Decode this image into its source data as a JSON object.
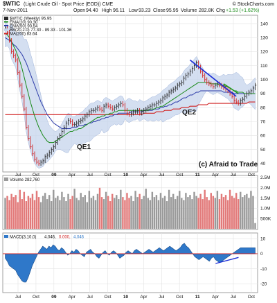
{
  "header": {
    "symbol": "$WTIC",
    "description": "(Light Crude Oil - Spot Price (EOD)) CME",
    "date": "7-Nov-2011",
    "open_label": "Open",
    "open": "94.40",
    "high_label": "High",
    "high": "96.11",
    "low_label": "Low",
    "low": "93.23",
    "close_label": "Close",
    "close": "95.95",
    "volume_label": "Volume",
    "volume": "282.8K",
    "chg_label": "Chg",
    "chg": "+1.53 (+1.62%)",
    "watermark": "© StockCharts.com"
  },
  "legend": {
    "price_row": "$WTIC (Weekly) 95.95",
    "ema20": "EMA(20) 90.30",
    "ema50": "EMA(50) 90.54",
    "bb": "BB(20,2.0) 77.30 - 89.33 - 101.36",
    "ma200": "MA(200) 83.64",
    "volume": "Volume 282,760",
    "macd_label": "MACD(3,10,0)",
    "macd_v1": "4.046,",
    "macd_v2": "0.000,",
    "macd_v3": "4.046"
  },
  "annotations": {
    "qe1": "QE1",
    "qe2": "QE2",
    "credit": "(c) Afraid to Trade"
  },
  "colors": {
    "up_bar": "#2a2a2a",
    "down_bar": "#d11f1f",
    "ema20": "#1a8a1a",
    "ema50": "#2b3aa8",
    "bb_fill": "#c6d4ec",
    "ma200": "#d12020",
    "vol_up": "#9a9a9a",
    "vol_down": "#e27a7a",
    "macd_fill": "#2f78c9",
    "trend_blue": "#1a2bd6",
    "trend_green": "#1a9a1a"
  },
  "chart_data": [
    {
      "type": "line",
      "panel": "price",
      "x_tick_labels": [
        "Jul",
        "Oct",
        "09",
        "Apr",
        "Jul",
        "Oct",
        "10",
        "Apr",
        "Jul",
        "Oct",
        "11",
        "Apr",
        "Jul",
        "Oct"
      ],
      "ylim": [
        35,
        145
      ],
      "y_ticks": [
        140,
        130,
        120,
        110,
        100,
        90,
        80,
        70,
        60,
        50,
        40
      ],
      "series": [
        {
          "name": "$WTIC (Weekly)",
          "values": [
            137,
            134,
            128,
            120,
            117,
            114,
            105,
            96,
            88,
            79,
            66,
            58,
            52,
            47,
            43,
            41,
            40,
            41,
            42,
            45,
            46,
            48,
            50,
            52,
            55,
            58,
            60,
            63,
            66,
            69,
            71,
            70,
            68,
            68,
            69,
            70,
            71,
            72,
            74,
            75,
            77,
            78,
            78,
            79,
            80,
            79,
            78,
            81,
            82,
            81,
            80,
            79,
            80,
            81,
            82,
            83,
            82,
            78,
            76,
            75,
            76,
            77,
            77,
            78,
            76,
            77,
            78,
            79,
            80,
            81,
            82,
            82,
            83,
            84,
            85,
            87,
            88,
            89,
            91,
            92,
            93,
            94,
            96,
            97,
            98,
            101,
            103,
            104,
            106,
            108,
            110,
            112,
            109,
            106,
            103,
            100,
            98,
            97,
            96,
            95,
            96,
            97,
            96,
            95,
            94,
            93,
            92,
            90,
            88,
            85,
            84,
            83,
            85,
            86,
            88,
            90,
            91,
            92,
            94,
            96
          ]
        },
        {
          "name": "EMA(20)",
          "values": [
            133,
            132,
            130,
            127,
            124,
            121,
            117,
            113,
            108,
            102,
            96,
            90,
            84,
            79,
            74,
            70,
            66,
            63,
            60,
            58,
            56,
            55,
            55,
            55,
            56,
            57,
            58,
            59,
            60,
            61,
            62,
            63,
            63,
            64,
            64,
            65,
            65,
            66,
            67,
            68,
            69,
            70,
            71,
            72,
            73,
            73,
            74,
            74,
            75,
            75,
            76,
            76,
            77,
            77,
            78,
            78,
            78,
            78,
            78,
            78,
            78,
            78,
            78,
            78,
            78,
            78,
            78,
            78,
            78,
            79,
            79,
            79,
            80,
            80,
            81,
            81,
            82,
            83,
            84,
            85,
            86,
            87,
            88,
            89,
            90,
            91,
            92,
            93,
            94,
            95,
            96,
            97,
            98,
            98,
            98,
            98,
            98,
            98,
            97,
            97,
            97,
            97,
            96,
            96,
            96,
            95,
            95,
            94,
            93,
            92,
            92,
            91,
            91,
            91,
            90,
            90,
            90,
            90,
            90,
            90
          ]
        },
        {
          "name": "EMA(50)",
          "values": [
            130,
            129,
            128,
            127,
            125,
            124,
            122,
            120,
            118,
            115,
            112,
            108,
            104,
            100,
            96,
            92,
            88,
            84,
            81,
            78,
            75,
            73,
            71,
            69,
            68,
            67,
            66,
            65,
            65,
            65,
            65,
            65,
            66,
            66,
            66,
            67,
            67,
            67,
            68,
            68,
            69,
            69,
            70,
            70,
            71,
            71,
            72,
            72,
            73,
            73,
            74,
            74,
            75,
            75,
            76,
            76,
            76,
            76,
            76,
            76,
            77,
            77,
            77,
            77,
            77,
            77,
            78,
            78,
            78,
            78,
            78,
            79,
            79,
            79,
            80,
            80,
            81,
            81,
            82,
            82,
            83,
            84,
            84,
            85,
            86,
            87,
            87,
            88,
            89,
            89,
            90,
            91,
            91,
            92,
            92,
            92,
            92,
            92,
            92,
            92,
            92,
            92,
            92,
            92,
            91,
            91,
            91,
            91,
            91,
            90,
            90,
            90,
            90,
            90,
            90,
            90,
            90,
            90,
            90,
            90
          ]
        },
        {
          "name": "MA(200)",
          "values": [
            75,
            75,
            75,
            75,
            75,
            75,
            75,
            75,
            75,
            75,
            75,
            75,
            75,
            75,
            75,
            75,
            75,
            75,
            75,
            75,
            75,
            75,
            75,
            75,
            75,
            75,
            75,
            75,
            75,
            75,
            75,
            75,
            75,
            75,
            75,
            75,
            75,
            75,
            75,
            75,
            75,
            75,
            75,
            75,
            75,
            75,
            75,
            75,
            75,
            75,
            75,
            75,
            75,
            75,
            75,
            75,
            75,
            75,
            75,
            75,
            75,
            75,
            75,
            75,
            75,
            75,
            76,
            76,
            76,
            76,
            76,
            76,
            77,
            77,
            77,
            77,
            78,
            78,
            78,
            78,
            79,
            79,
            79,
            79,
            80,
            80,
            80,
            80,
            81,
            81,
            81,
            81,
            82,
            82,
            82,
            82,
            82,
            83,
            83,
            83,
            83,
            83,
            83,
            83,
            83,
            83,
            83,
            83,
            83,
            83,
            83,
            83,
            83,
            83,
            83,
            83,
            84,
            84,
            84,
            84
          ]
        }
      ]
    },
    {
      "type": "bar",
      "panel": "volume",
      "ylim": [
        0,
        2500000
      ],
      "y_tick_labels": [
        "2.5M",
        "2.0M",
        "1.5M",
        "1.0M",
        "500K"
      ],
      "values": [
        1.5,
        1.6,
        1.4,
        1.7,
        1.55,
        1.65,
        1.3,
        1.9,
        1.45,
        1.8,
        1.35,
        1.6,
        1.5,
        1.7,
        1.4,
        1.85,
        1.55,
        1.3,
        1.6,
        1.75,
        1.45,
        1.65,
        1.35,
        1.9,
        1.5,
        1.6,
        1.4,
        1.8,
        1.55,
        1.35,
        1.7,
        1.45,
        1.6,
        1.95,
        1.5,
        1.4,
        1.75,
        1.55,
        1.65,
        1.3,
        1.85,
        1.5,
        1.6,
        1.4,
        1.7,
        2.0,
        1.55,
        1.45,
        1.8,
        1.6,
        1.35,
        1.7,
        1.5,
        1.65,
        1.45,
        1.9,
        1.55,
        1.4,
        1.75,
        1.5,
        1.6,
        1.35,
        1.85,
        1.55,
        1.7,
        1.45,
        1.6,
        1.95,
        1.5,
        1.4,
        1.8,
        1.55,
        1.65,
        1.4,
        1.75,
        1.5,
        1.6,
        1.35,
        1.9,
        1.55,
        1.7,
        1.45,
        1.6,
        1.85,
        1.5,
        1.4,
        1.75,
        1.55,
        1.65,
        1.45,
        1.8,
        1.6,
        1.5,
        1.7,
        1.45,
        1.9,
        1.55,
        1.4,
        1.75,
        1.6,
        1.5,
        1.85,
        1.45,
        1.7,
        1.55,
        1.65,
        1.4,
        1.9,
        1.6,
        1.5,
        1.75,
        1.45,
        1.8,
        1.55,
        1.65,
        1.7,
        1.5,
        1.85,
        1.6,
        0.28
      ]
    },
    {
      "type": "area",
      "panel": "macd",
      "ylim": [
        -25,
        12
      ],
      "y_tick_labels": [
        "10",
        "0",
        "-10",
        "-20"
      ],
      "values": [
        -3,
        -5,
        -8,
        -9,
        -10,
        -11,
        -14,
        -16,
        -18,
        -19,
        -19,
        -16,
        -12,
        -8,
        -5,
        -2,
        1,
        3,
        5,
        4,
        3,
        5,
        4,
        6,
        5,
        3,
        2,
        4,
        3,
        1,
        -1,
        0,
        2,
        1,
        3,
        2,
        0,
        -1,
        -2,
        1,
        2,
        3,
        1,
        0,
        -2,
        -3,
        -1,
        1,
        2,
        0,
        -1,
        1,
        2,
        1,
        -1,
        -3,
        -2,
        -1,
        1,
        2,
        1,
        0,
        2,
        3,
        2,
        1,
        0,
        1,
        2,
        3,
        2,
        1,
        2,
        3,
        4,
        3,
        2,
        3,
        4,
        5,
        4,
        3,
        2,
        3,
        4,
        6,
        7,
        5,
        4,
        2,
        0,
        -2,
        -3,
        -4,
        -3,
        -2,
        -3,
        -4,
        -5,
        -3,
        -2,
        -4,
        -5,
        -6,
        -5,
        -4,
        -3,
        -2,
        -1,
        0,
        1,
        2,
        3,
        4,
        4,
        4,
        4,
        4,
        4,
        4,
        4
      ]
    }
  ]
}
